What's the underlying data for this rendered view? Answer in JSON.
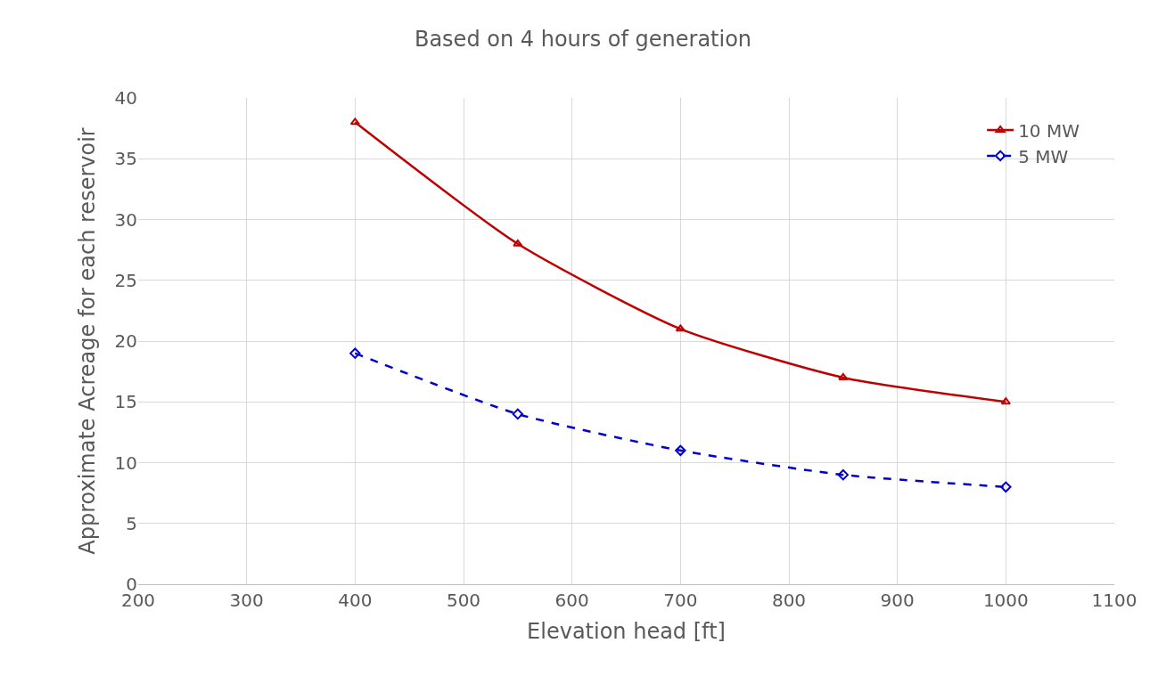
{
  "chart_data": {
    "type": "line",
    "title": "Based on 4 hours of generation",
    "xlabel": "Elevation head [ft]",
    "ylabel": "Approximate Acreage for each reservoir",
    "x": [
      400,
      550,
      700,
      850,
      1000
    ],
    "series": [
      {
        "name": "10 MW",
        "color": "#c00000",
        "values": [
          38,
          28,
          21,
          17,
          15
        ],
        "marker": "triangle",
        "line_style": "solid"
      },
      {
        "name": "5 MW",
        "color": "#0000cc",
        "values": [
          19,
          14,
          11,
          9,
          8
        ],
        "marker": "diamond",
        "line_style": "dashed"
      }
    ],
    "xlim": [
      200,
      1100
    ],
    "xticks": [
      200,
      300,
      400,
      500,
      600,
      700,
      800,
      900,
      1000,
      1100
    ],
    "ylim": [
      0,
      40
    ],
    "yticks": [
      0,
      5,
      10,
      15,
      20,
      25,
      30,
      35,
      40
    ],
    "grid": true,
    "legend": "top right"
  }
}
